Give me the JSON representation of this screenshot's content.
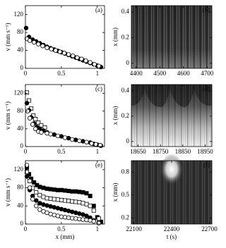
{
  "chart_data": [
    {
      "type": "scatter",
      "label": "(a)",
      "ylabel": "v (mm s⁻¹)",
      "xlim": [
        0,
        1.1
      ],
      "ylim": [
        0,
        140
      ],
      "xticks": [
        0,
        0.5,
        1
      ],
      "yticks": [
        0,
        40,
        80,
        120
      ],
      "series": [
        {
          "marker": "circle",
          "filled": true,
          "color": "#000000",
          "x": [
            0.01,
            0.05,
            0.1,
            0.15,
            0.2,
            0.25,
            0.3,
            0.35,
            0.4,
            0.45,
            0.5,
            0.55,
            0.6,
            0.65,
            0.7,
            0.75,
            0.8,
            0.85,
            0.9,
            0.95,
            1.0,
            1.05
          ],
          "values": [
            90,
            70,
            64,
            60,
            56,
            52,
            48,
            45,
            42,
            39,
            36,
            33,
            30,
            27,
            24,
            21,
            18,
            15,
            12,
            9,
            6,
            3
          ]
        },
        {
          "marker": "circle",
          "filled": false,
          "color": "#000000",
          "x": [
            0.02,
            0.06,
            0.12,
            0.18,
            0.24,
            0.3,
            0.36,
            0.42,
            0.48,
            0.54,
            0.6,
            0.66,
            0.72,
            0.78,
            0.84,
            0.9,
            0.96,
            1.02
          ],
          "values": [
            66,
            62,
            58,
            54,
            50,
            46,
            43,
            40,
            37,
            34,
            31,
            28,
            24,
            21,
            17,
            13,
            9,
            5
          ]
        }
      ]
    },
    {
      "type": "image",
      "label": "(b)",
      "ylabel": "x (mm)",
      "xlim": [
        4380,
        4720
      ],
      "ylim": [
        -0.04,
        0.45
      ],
      "xticks": [
        4400,
        4500,
        4600,
        4700
      ],
      "yticks": [
        0,
        0.2,
        0.4
      ]
    },
    {
      "type": "scatter",
      "label": "(c)",
      "ylabel": "v (mm s⁻¹)",
      "xlim": [
        0,
        1.1
      ],
      "ylim": [
        0,
        140
      ],
      "xticks": [
        0,
        0.5,
        1
      ],
      "yticks": [
        0,
        40,
        80,
        120
      ],
      "series": [
        {
          "marker": "square",
          "filled": false,
          "color": "#000000",
          "x": [
            0.02,
            0.05,
            0.08,
            0.11,
            0.14,
            0.18,
            0.22,
            0.27
          ],
          "values": [
            122,
            104,
            86,
            70,
            62,
            54,
            48,
            43
          ]
        },
        {
          "marker": "circle",
          "filled": true,
          "color": "#000000",
          "x": [
            0.02,
            0.05,
            0.08,
            0.12,
            0.16,
            0.2,
            0.25,
            0.3,
            0.4,
            0.5,
            0.6,
            0.7,
            0.8,
            0.9,
            0.95,
            1.0,
            1.05
          ],
          "values": [
            98,
            82,
            66,
            52,
            44,
            40,
            36,
            32,
            27,
            23,
            19,
            15,
            12,
            9,
            6,
            4,
            2
          ]
        },
        {
          "marker": "circle",
          "filled": false,
          "color": "#000000",
          "x": [
            0.03,
            0.06,
            0.1,
            0.14,
            0.18,
            0.22,
            0.3,
            0.35,
            0.45,
            0.55,
            0.65,
            0.75,
            0.85,
            0.92,
            0.98,
            1.04
          ],
          "values": [
            80,
            64,
            50,
            40,
            34,
            32,
            30,
            28,
            24,
            20,
            16,
            13,
            10,
            7,
            5,
            3
          ]
        }
      ]
    },
    {
      "type": "image",
      "label": "(d)",
      "ylabel": "x (mm)",
      "xlim": [
        18620,
        18980
      ],
      "ylim": [
        -0.04,
        0.45
      ],
      "xticks": [
        18650,
        18750,
        18850,
        18950
      ],
      "yticks": [
        0,
        0.2,
        0.4
      ]
    },
    {
      "type": "scatter",
      "label": "(e)",
      "ylabel": "v (mm s⁻¹)",
      "xlabel": "x (mm)",
      "xlim": [
        0,
        1.1
      ],
      "ylim": [
        0,
        140
      ],
      "xticks": [
        0,
        0.5,
        1
      ],
      "yticks": [
        0,
        40,
        80,
        120
      ],
      "series": [
        {
          "marker": "square",
          "filled": true,
          "color": "#000000",
          "x": [
            0.02,
            0.05,
            0.08,
            0.12,
            0.16,
            0.2,
            0.25,
            0.3,
            0.35,
            0.4,
            0.45,
            0.5,
            0.55,
            0.6,
            0.65,
            0.7,
            0.75,
            0.8,
            0.85,
            0.9,
            0.95,
            1.0,
            1.05
          ],
          "values": [
            125,
            110,
            100,
            92,
            86,
            82,
            80,
            78,
            77,
            76,
            75,
            75,
            74,
            73,
            72,
            72,
            71,
            70,
            68,
            62,
            40,
            15,
            5
          ]
        },
        {
          "marker": "square",
          "filled": false,
          "color": "#000000",
          "x": [
            0.02,
            0.06,
            0.1,
            0.15,
            0.2,
            0.25,
            0.3,
            0.35,
            0.4,
            0.45,
            0.5,
            0.55,
            0.6,
            0.65,
            0.7,
            0.75,
            0.8,
            0.85,
            0.9,
            0.95,
            1.02
          ],
          "values": [
            115,
            95,
            80,
            70,
            64,
            60,
            57,
            56,
            55,
            54,
            53,
            52,
            51,
            50,
            49,
            48,
            46,
            44,
            40,
            30,
            12
          ]
        },
        {
          "marker": "circle",
          "filled": true,
          "color": "#000000",
          "x": [
            0.02,
            0.06,
            0.1,
            0.15,
            0.2,
            0.25,
            0.3,
            0.35,
            0.4,
            0.45,
            0.5,
            0.55,
            0.6,
            0.65,
            0.7,
            0.75,
            0.8,
            0.85,
            0.9,
            0.95,
            1.02
          ],
          "values": [
            105,
            75,
            62,
            52,
            46,
            43,
            41,
            39,
            37,
            35,
            33,
            31,
            29,
            27,
            25,
            23,
            21,
            18,
            14,
            8,
            3
          ]
        },
        {
          "marker": "circle",
          "filled": false,
          "color": "#000000",
          "x": [
            0.02,
            0.06,
            0.1,
            0.15,
            0.2,
            0.25,
            0.3,
            0.35,
            0.4,
            0.45,
            0.5,
            0.55,
            0.6,
            0.65,
            0.7,
            0.75,
            0.8,
            0.85,
            0.9,
            0.95,
            1.02
          ],
          "values": [
            130,
            80,
            55,
            40,
            32,
            28,
            25,
            22,
            20,
            18,
            16,
            15,
            14,
            13,
            12,
            11,
            10,
            9,
            8,
            6,
            2
          ]
        }
      ]
    },
    {
      "type": "image",
      "label": "(f)",
      "ylabel": "x (mm)",
      "xlabel": "t (s)",
      "xlim": [
        22080,
        22720
      ],
      "ylim": [
        0.12,
        0.95
      ],
      "xticks": [
        22100,
        22400,
        22700
      ],
      "yticks": [
        0.2,
        0.5,
        0.8
      ]
    }
  ]
}
